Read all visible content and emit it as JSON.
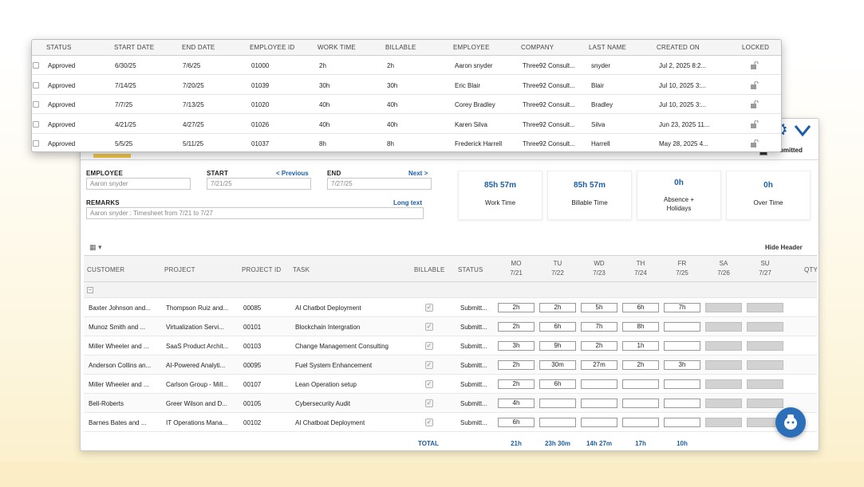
{
  "list": {
    "columns": [
      "STATUS",
      "START DATE",
      "END DATE",
      "EMPLOYEE ID",
      "WORK TIME",
      "BILLABLE",
      "EMPLOYEE",
      "COMPANY",
      "LAST NAME",
      "CREATED ON",
      "LOCKED"
    ],
    "rows": [
      {
        "status": "Approved",
        "start": "6/30/25",
        "end": "7/6/25",
        "emp_id": "01000",
        "work": "2h",
        "billable": "2h",
        "employee": "Aaron snyder",
        "company": "Three92 Consult...",
        "last": "snyder",
        "created": "Jul 2, 2025 8:2..."
      },
      {
        "status": "Approved",
        "start": "7/14/25",
        "end": "7/20/25",
        "emp_id": "01039",
        "work": "30h",
        "billable": "30h",
        "employee": "Eric Blair",
        "company": "Three92 Consult...",
        "last": "Blair",
        "created": "Jul 10, 2025 3:..."
      },
      {
        "status": "Approved",
        "start": "7/7/25",
        "end": "7/13/25",
        "emp_id": "01020",
        "work": "40h",
        "billable": "40h",
        "employee": "Corey Bradley",
        "company": "Three92 Consult...",
        "last": "Bradley",
        "created": "Jul 10, 2025 3:..."
      },
      {
        "status": "Approved",
        "start": "4/21/25",
        "end": "4/27/25",
        "emp_id": "01026",
        "work": "40h",
        "billable": "40h",
        "employee": "Karen Silva",
        "company": "Three92 Consult...",
        "last": "Silva",
        "created": "Jun 23, 2025 11..."
      },
      {
        "status": "Approved",
        "start": "5/5/25",
        "end": "5/11/25",
        "emp_id": "01037",
        "work": "8h",
        "billable": "8h",
        "employee": "Frederick Harrell",
        "company": "Three92 Consult...",
        "last": "Harrell",
        "created": "May 28, 2025 4..."
      }
    ]
  },
  "timesheet": {
    "submitted_label": "bmitted",
    "employee_label": "EMPLOYEE",
    "employee_value": "Aaron snyder",
    "start_label": "START",
    "previous_link": "< Previous",
    "start_value": "7/21/25",
    "end_label": "END",
    "next_link": "Next >",
    "end_value": "7/27/25",
    "remarks_label": "REMARKS",
    "long_text_link": "Long text",
    "remarks_value": "Aaron snyder : Timesheet from 7/21 to 7/27",
    "cards": [
      {
        "value": "85h 57m",
        "label": "Work Time"
      },
      {
        "value": "85h 57m",
        "label": "Billable Time"
      },
      {
        "value": "0h",
        "label": "Absence +",
        "label2": "Holidays"
      },
      {
        "value": "0h",
        "label": "Over Time"
      }
    ],
    "hide_header": "Hide Header",
    "columns": {
      "customer": "CUSTOMER",
      "project": "PROJECT",
      "project_id": "PROJECT ID",
      "task": "TASK",
      "billable": "BILLABLE",
      "status": "STATUS",
      "qty": "QTY"
    },
    "days": [
      {
        "d": "MO",
        "date": "7/21"
      },
      {
        "d": "TU",
        "date": "7/22"
      },
      {
        "d": "WD",
        "date": "7/23"
      },
      {
        "d": "TH",
        "date": "7/24"
      },
      {
        "d": "FR",
        "date": "7/25"
      },
      {
        "d": "SA",
        "date": "7/26"
      },
      {
        "d": "SU",
        "date": "7/27"
      }
    ],
    "rows": [
      {
        "customer": "Baxter Johnson and...",
        "project": "Thompson Ruiz and...",
        "pid": "00085",
        "task": "AI Chatbot Deployment",
        "status": "Submitt...",
        "times": [
          "2h",
          "2h",
          "5h",
          "6h",
          "7h"
        ]
      },
      {
        "customer": "Munoz Smith and ...",
        "project": "Virtualization Servi...",
        "pid": "00101",
        "task": "Blockchain Intergration",
        "status": "Submitt...",
        "times": [
          "2h",
          "6h",
          "7h",
          "8h",
          ""
        ]
      },
      {
        "customer": "Miller Wheeler and ...",
        "project": "SaaS Product Archit...",
        "pid": "00103",
        "task": "Change Management Consulting",
        "status": "Submitt...",
        "times": [
          "3h",
          "9h",
          "2h",
          "1h",
          ""
        ]
      },
      {
        "customer": "Anderson Collins an...",
        "project": "AI-Powered Analyti...",
        "pid": "00095",
        "task": "Fuel System Enhancement",
        "status": "Submitt...",
        "times": [
          "2h",
          "30m",
          "27m",
          "2h",
          "3h"
        ]
      },
      {
        "customer": "Miller Wheeler and ...",
        "project": "Carlson Group - Mill...",
        "pid": "00107",
        "task": "Lean Operation setup",
        "status": "Submitt...",
        "times": [
          "2h",
          "6h",
          "",
          "",
          ""
        ]
      },
      {
        "customer": "Bell-Roberts",
        "project": "Greer Wilson and D...",
        "pid": "00105",
        "task": "Cybersecurity Audit",
        "status": "Submitt...",
        "times": [
          "4h",
          "",
          "",
          "",
          ""
        ]
      },
      {
        "customer": "Barnes Bates and ...",
        "project": "IT Operations Mana...",
        "pid": "00102",
        "task": "AI Chatboat Deployment",
        "status": "Submitt...",
        "times": [
          "6h",
          "",
          "",
          "",
          ""
        ]
      }
    ],
    "total_label": "TOTAL",
    "totals": [
      "21h",
      "23h 30m",
      "14h 27m",
      "17h",
      "10h"
    ]
  },
  "colors": {
    "accent": "#1c5fa8",
    "highlight": "#f2c94c"
  },
  "icons": [
    "gear-icon",
    "chevron-down-icon",
    "grid-view-icon",
    "lock-icon",
    "help-assistant-icon"
  ]
}
